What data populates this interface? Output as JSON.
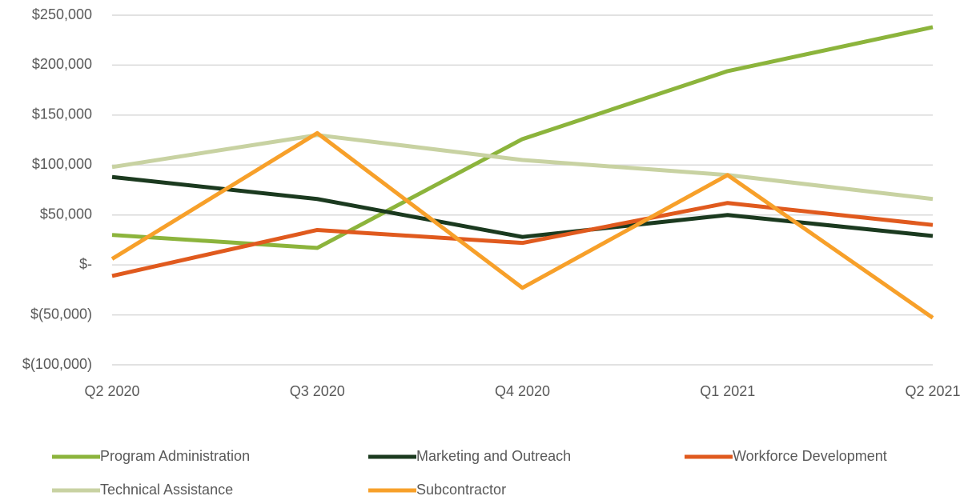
{
  "chart_data": {
    "type": "line",
    "categories": [
      "Q2 2020",
      "Q3 2020",
      "Q4 2020",
      "Q1 2021",
      "Q2 2021"
    ],
    "series": [
      {
        "name": "Program Administration",
        "color": "#8cb43c",
        "values": [
          30000,
          17000,
          126000,
          194000,
          238000
        ]
      },
      {
        "name": "Marketing and Outreach",
        "color": "#1b3a1f",
        "values": [
          88000,
          66000,
          28000,
          50000,
          29000
        ]
      },
      {
        "name": "Workforce Development",
        "color": "#e05a1e",
        "values": [
          -11000,
          35000,
          22000,
          62000,
          40000
        ]
      },
      {
        "name": "Technical Assistance",
        "color": "#c8d2a2",
        "values": [
          98000,
          130000,
          105000,
          90000,
          66000
        ]
      },
      {
        "name": "Subcontractor",
        "color": "#f7a02a",
        "values": [
          6000,
          132000,
          -23000,
          90000,
          -53000
        ]
      }
    ],
    "ylim": [
      -100000,
      250000
    ],
    "yticks": [
      {
        "value": -100000,
        "label": "$(100,000)"
      },
      {
        "value": -50000,
        "label": "$(50,000)"
      },
      {
        "value": 0,
        "label": "$-"
      },
      {
        "value": 50000,
        "label": "$50,000"
      },
      {
        "value": 100000,
        "label": "$100,000"
      },
      {
        "value": 150000,
        "label": "$150,000"
      },
      {
        "value": 200000,
        "label": "$200,000"
      },
      {
        "value": 250000,
        "label": "$250,000"
      }
    ],
    "grid": true,
    "legend": "bottom"
  }
}
